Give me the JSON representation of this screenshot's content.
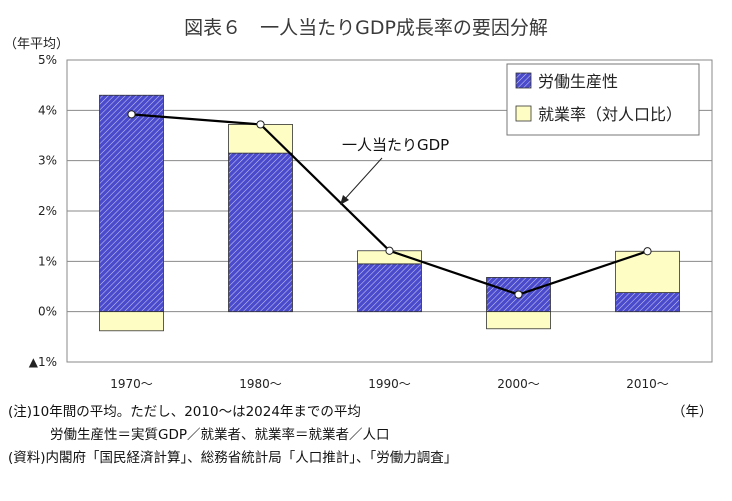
{
  "chart_data": {
    "type": "bar",
    "title": "図表６　一人当たりGDP成長率の要因分解",
    "ylabel": "（年平均）",
    "xlabel": "（年）",
    "categories": [
      "1970～",
      "1980～",
      "1990～",
      "2000～",
      "2010～"
    ],
    "ylim": [
      -1,
      5
    ],
    "yticks": [
      {
        "value": 5,
        "label": "5%"
      },
      {
        "value": 4,
        "label": "4%"
      },
      {
        "value": 3,
        "label": "3%"
      },
      {
        "value": 2,
        "label": "2%"
      },
      {
        "value": 1,
        "label": "1%"
      },
      {
        "value": 0,
        "label": "0%"
      },
      {
        "value": -1,
        "label": "▲1%"
      }
    ],
    "grid": true,
    "legend_position": "top-right",
    "series": [
      {
        "name": "労働生産性",
        "type": "stacked-bar",
        "color": "#4a4acc",
        "values": [
          4.3,
          3.15,
          0.95,
          0.68,
          0.38
        ]
      },
      {
        "name": "就業率（対人口比）",
        "type": "stacked-bar",
        "color": "#fdfdc4",
        "values": [
          -0.38,
          0.57,
          0.26,
          -0.34,
          0.82
        ]
      },
      {
        "name": "一人当たりGDP",
        "type": "line",
        "color": "#000000",
        "values": [
          3.92,
          3.72,
          1.21,
          0.34,
          1.2
        ]
      }
    ],
    "annotation": "一人当たりGDP"
  },
  "notes": [
    "(注)10年間の平均。ただし、2010～は2024年までの平均",
    "労働生産性＝実質GDP／就業者、就業率＝就業者／人口",
    "(資料)内閣府「国民経済計算」、総務省統計局「人口推計」、「労働力調査」"
  ]
}
